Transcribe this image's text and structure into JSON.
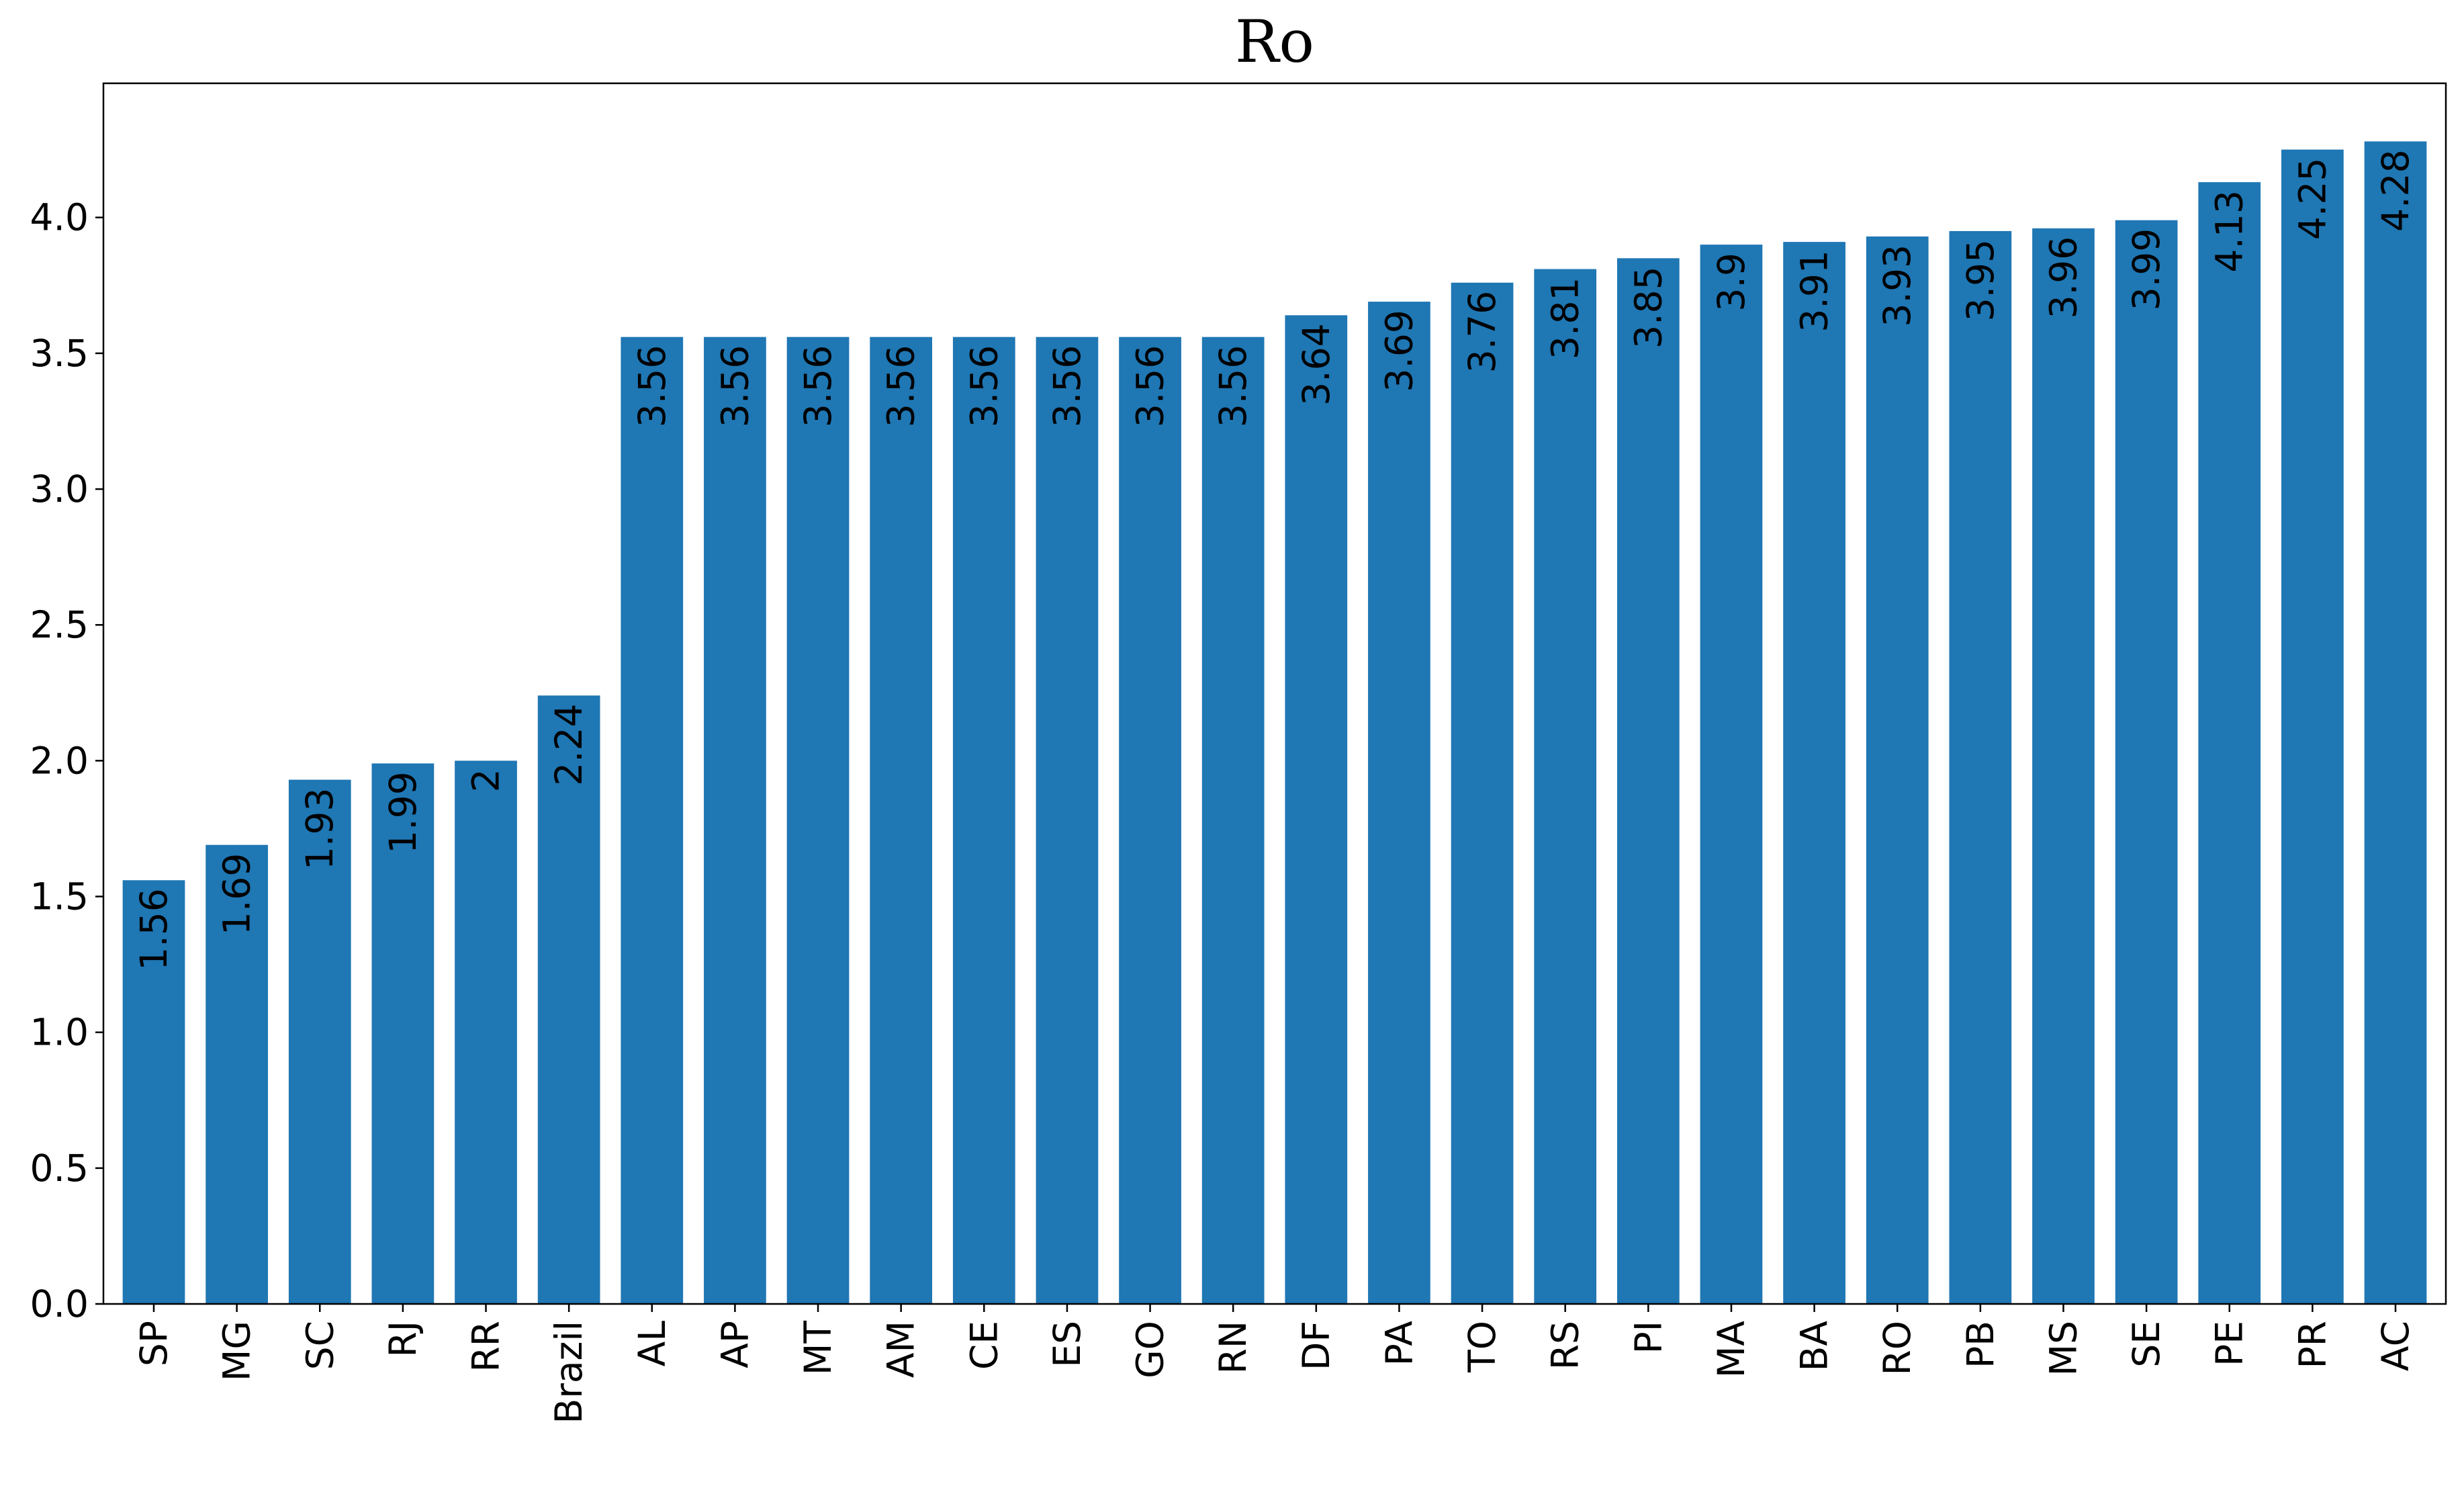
{
  "chart_data": {
    "type": "bar",
    "title": "Ro",
    "xlabel": "",
    "ylabel": "",
    "ylim": [
      0,
      4.494
    ],
    "yticks": [
      "0.0",
      "0.5",
      "1.0",
      "1.5",
      "2.0",
      "2.5",
      "3.0",
      "3.5",
      "4.0"
    ],
    "categories": [
      "SP",
      "MG",
      "SC",
      "RJ",
      "RR",
      "Brazil",
      "AL",
      "AP",
      "MT",
      "AM",
      "CE",
      "ES",
      "GO",
      "RN",
      "DF",
      "PA",
      "TO",
      "RS",
      "PI",
      "MA",
      "BA",
      "RO",
      "PB",
      "MS",
      "SE",
      "PE",
      "PR",
      "AC"
    ],
    "values": [
      1.56,
      1.69,
      1.93,
      1.99,
      2,
      2.24,
      3.56,
      3.56,
      3.56,
      3.56,
      3.56,
      3.56,
      3.56,
      3.56,
      3.64,
      3.69,
      3.76,
      3.81,
      3.85,
      3.9,
      3.91,
      3.93,
      3.95,
      3.96,
      3.99,
      4.13,
      4.25,
      4.28
    ],
    "data_labels": [
      "1.56",
      "1.69",
      "1.93",
      "1.99",
      "2",
      "2.24",
      "3.56",
      "3.56",
      "3.56",
      "3.56",
      "3.56",
      "3.56",
      "3.56",
      "3.56",
      "3.64",
      "3.69",
      "3.76",
      "3.81",
      "3.85",
      "3.9",
      "3.91",
      "3.93",
      "3.95",
      "3.96",
      "3.99",
      "4.13",
      "4.25",
      "4.28"
    ],
    "bar_color": "#1f77b4",
    "grid": false,
    "legend": "none"
  }
}
